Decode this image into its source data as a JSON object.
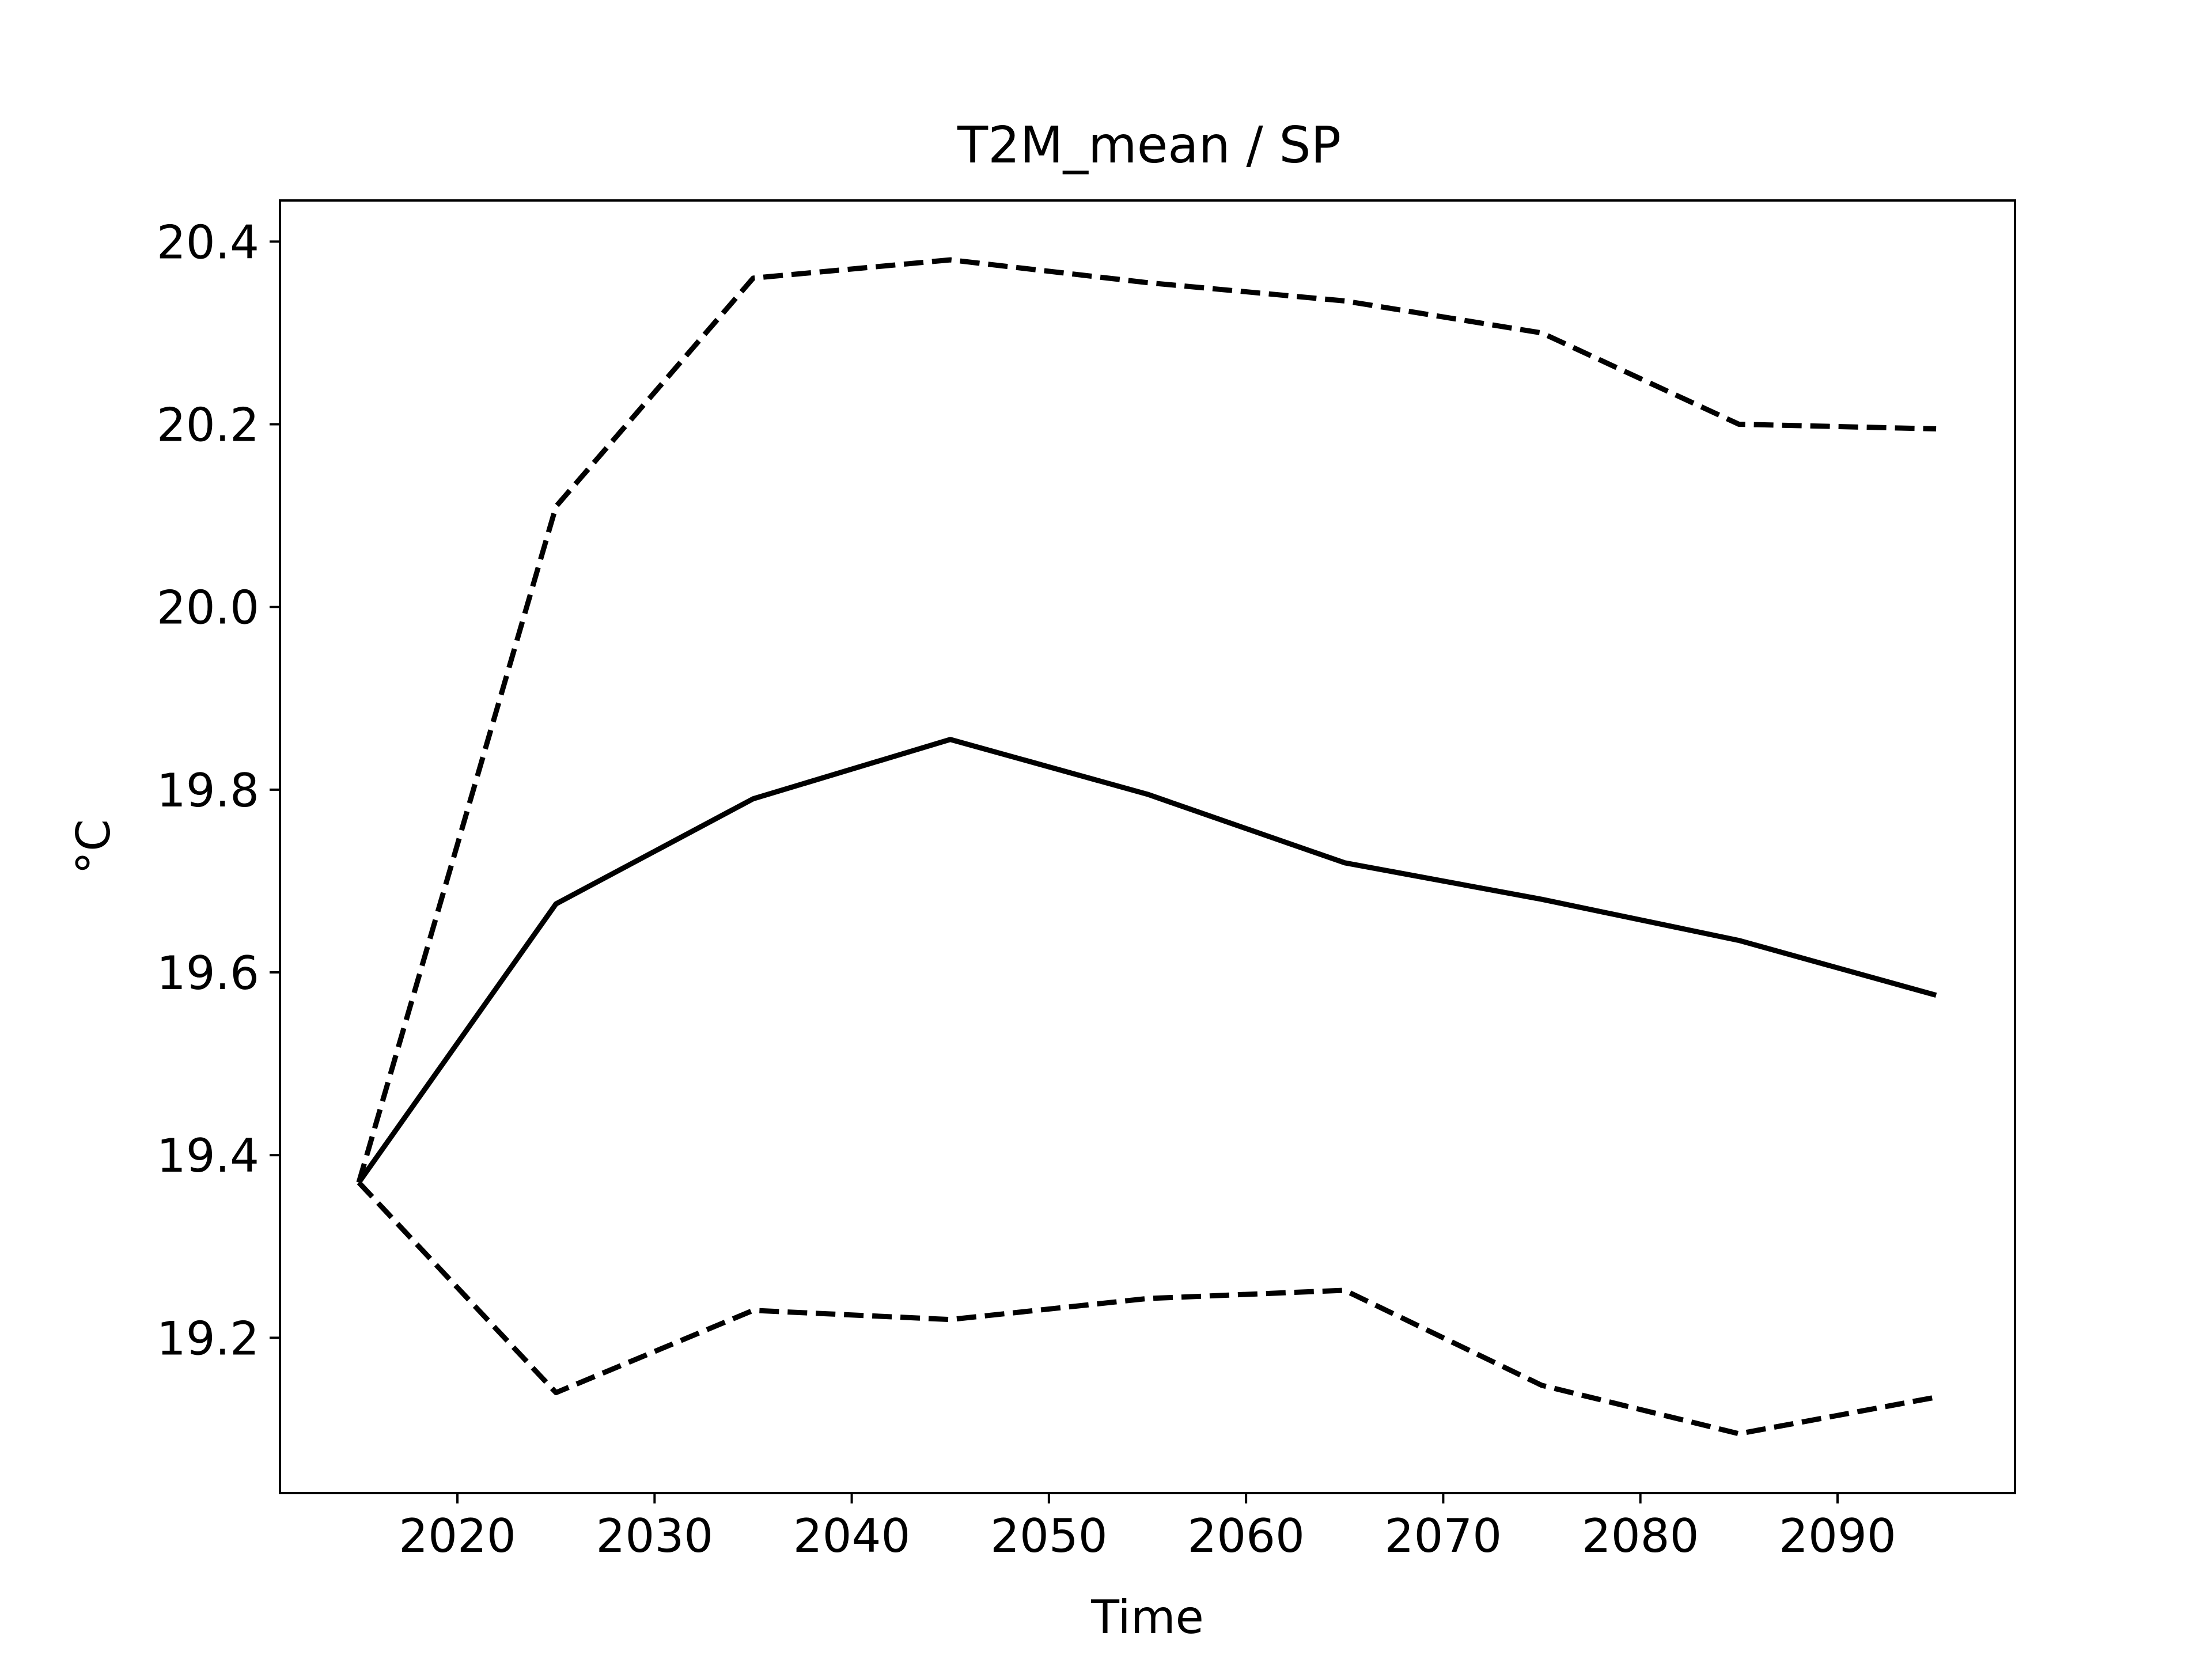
{
  "chart_data": {
    "type": "line",
    "title": "T2M_mean / SP",
    "xlabel": "Time",
    "ylabel": "°C",
    "xlim": [
      2011,
      2099
    ],
    "ylim": [
      19.03,
      20.445
    ],
    "x_ticks": [
      2020,
      2030,
      2040,
      2050,
      2060,
      2070,
      2080,
      2090
    ],
    "x_tick_labels": [
      "2020",
      "2030",
      "2040",
      "2050",
      "2060",
      "2070",
      "2080",
      "2090"
    ],
    "y_ticks": [
      19.2,
      19.4,
      19.6,
      19.8,
      20.0,
      20.2,
      20.4
    ],
    "y_tick_labels": [
      "19.2",
      "19.4",
      "19.6",
      "19.8",
      "20.0",
      "20.2",
      "20.4"
    ],
    "grid": false,
    "legend": "none",
    "x": [
      2015,
      2025,
      2035,
      2045,
      2055,
      2065,
      2075,
      2085,
      2095
    ],
    "series": [
      {
        "style": "solid",
        "color": "#000000",
        "values": [
          19.37,
          19.675,
          19.79,
          19.855,
          19.795,
          19.72,
          19.68,
          19.635,
          19.575
        ]
      },
      {
        "style": "dashed",
        "color": "#000000",
        "values": [
          19.37,
          20.11,
          20.36,
          20.38,
          20.355,
          20.335,
          20.3,
          20.2,
          20.195
        ]
      },
      {
        "style": "dashed",
        "color": "#000000",
        "values": [
          19.37,
          19.14,
          19.23,
          19.22,
          19.243,
          19.252,
          19.148,
          19.095,
          19.135
        ]
      }
    ]
  }
}
